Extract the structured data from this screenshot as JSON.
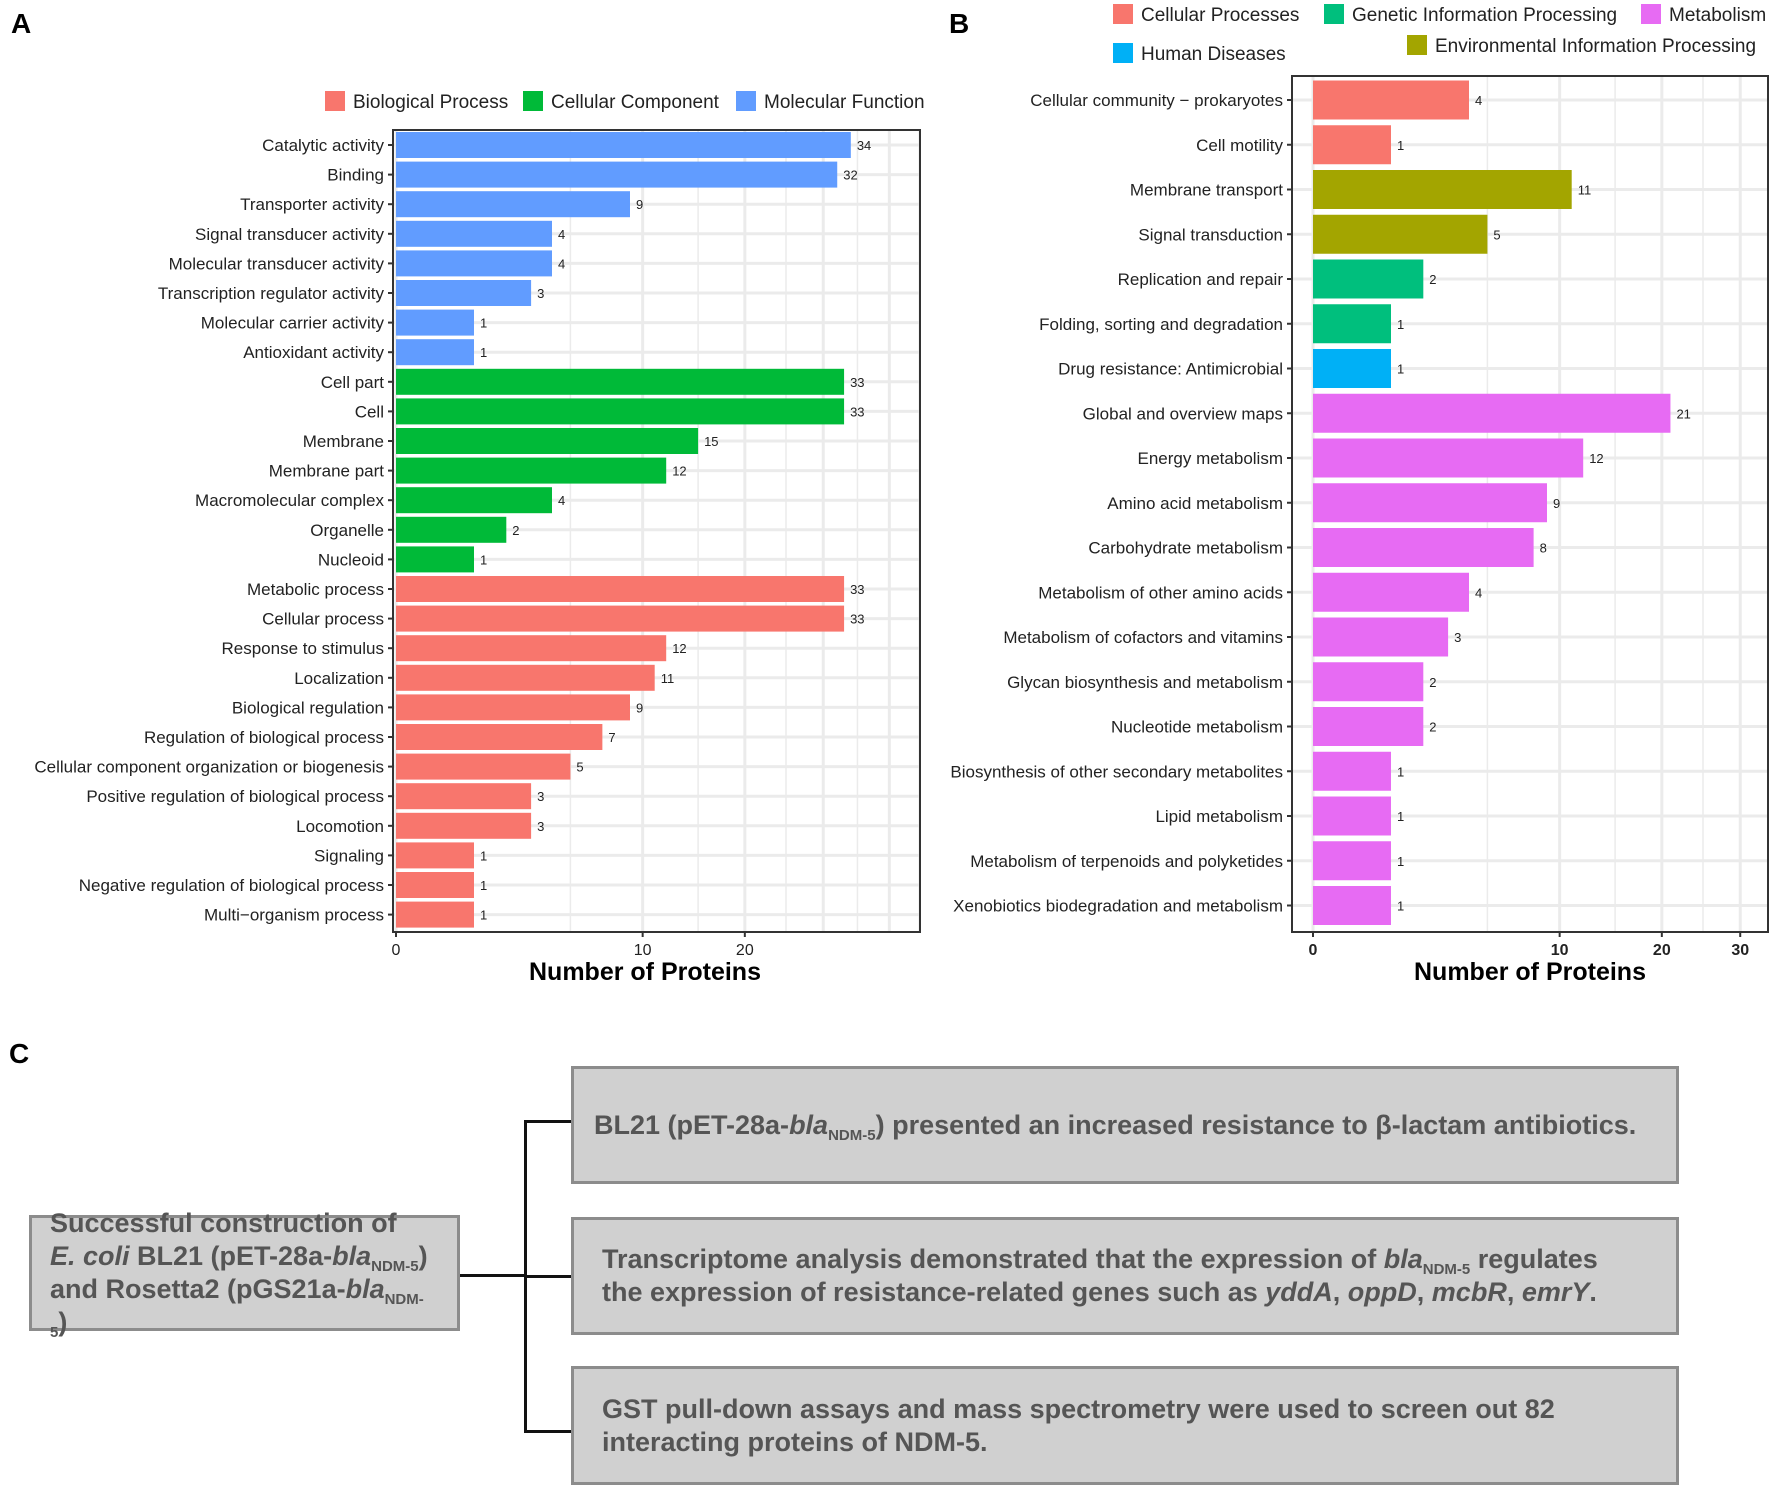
{
  "panel_labels": {
    "a": "A",
    "b": "B",
    "c": "C"
  },
  "chart_data": [
    {
      "type": "bar",
      "orientation": "horizontal",
      "xscale": "sqrt",
      "xlabel": "Number of Proteins",
      "xticks": [
        0,
        10,
        20
      ],
      "xlim": [
        0,
        45
      ],
      "legend": [
        {
          "name": "Biological Process",
          "color": "#F8766D"
        },
        {
          "name": "Cellular Component",
          "color": "#00BA38"
        },
        {
          "name": "Molecular Function",
          "color": "#619CFF"
        }
      ],
      "categories": [
        "Catalytic activity",
        "Binding",
        "Transporter activity",
        "Signal transducer activity",
        "Molecular transducer activity",
        "Transcription regulator activity",
        "Molecular carrier activity",
        "Antioxidant activity",
        "Cell part",
        "Cell",
        "Membrane",
        "Membrane part",
        "Macromolecular complex",
        "Organelle",
        "Nucleoid",
        "Metabolic process",
        "Cellular process",
        "Response to stimulus",
        "Localization",
        "Biological regulation",
        "Regulation of biological process",
        "Cellular component organization or biogenesis",
        "Positive regulation of biological process",
        "Locomotion",
        "Signaling",
        "Negative regulation of biological process",
        "Multi−organism process"
      ],
      "values": [
        34,
        32,
        9,
        4,
        4,
        3,
        1,
        1,
        33,
        33,
        15,
        12,
        4,
        2,
        1,
        33,
        33,
        12,
        11,
        9,
        7,
        5,
        3,
        3,
        1,
        1,
        1
      ],
      "groups": [
        2,
        2,
        2,
        2,
        2,
        2,
        2,
        2,
        1,
        1,
        1,
        1,
        1,
        1,
        1,
        0,
        0,
        0,
        0,
        0,
        0,
        0,
        0,
        0,
        0,
        0,
        0
      ]
    },
    {
      "type": "bar",
      "orientation": "horizontal",
      "xscale": "sqrt",
      "xlabel": "Number of Proteins",
      "xticks": [
        0,
        10,
        20,
        30
      ],
      "xlim": [
        0,
        37
      ],
      "legend": [
        {
          "name": "Cellular Processes",
          "color": "#F8766D"
        },
        {
          "name": "Genetic Information Processing",
          "color": "#00BF7D"
        },
        {
          "name": "Metabolism",
          "color": "#E76BF3"
        },
        {
          "name": "Human Diseases",
          "color": "#00B0F6"
        },
        {
          "name": "Environmental Information Processing",
          "color": "#A3A500"
        }
      ],
      "categories": [
        "Cellular community − prokaryotes",
        "Cell motility",
        "Membrane transport",
        "Signal transduction",
        "Replication and repair",
        "Folding, sorting and degradation",
        "Drug resistance: Antimicrobial",
        "Global and overview maps",
        "Energy metabolism",
        "Amino acid metabolism",
        "Carbohydrate metabolism",
        "Metabolism of other amino acids",
        "Metabolism of cofactors and vitamins",
        "Glycan biosynthesis and metabolism",
        "Nucleotide metabolism",
        "Biosynthesis of other secondary metabolites",
        "Lipid metabolism",
        "Metabolism of terpenoids and polyketides",
        "Xenobiotics biodegradation and metabolism"
      ],
      "values": [
        4,
        1,
        11,
        5,
        2,
        1,
        1,
        21,
        12,
        9,
        8,
        4,
        3,
        2,
        2,
        1,
        1,
        1,
        1
      ],
      "groups": [
        0,
        0,
        4,
        4,
        1,
        1,
        3,
        2,
        2,
        2,
        2,
        2,
        2,
        2,
        2,
        2,
        2,
        2,
        2
      ]
    }
  ],
  "diagram": {
    "source": [
      [
        {
          "t": "Successful construction of"
        }
      ],
      [
        {
          "t": "E. coli",
          "f": "i"
        },
        {
          "t": " BL21 (pET-28a-"
        },
        {
          "t": "bla",
          "f": "i"
        },
        {
          "t": "NDM-5",
          "f": "sub"
        },
        {
          "t": ")"
        }
      ],
      [
        {
          "t": "and Rosetta2 (pGS21a-"
        },
        {
          "t": "bla",
          "f": "i"
        },
        {
          "t": "NDM-5",
          "f": "sub"
        },
        {
          "t": ")"
        }
      ]
    ],
    "results": [
      [
        [
          {
            "t": "BL21 (pET-28a-"
          },
          {
            "t": "bla",
            "f": "i"
          },
          {
            "t": "NDM-5",
            "f": "sub"
          },
          {
            "t": ") presented an increased resistance to β-lactam antibiotics."
          }
        ]
      ],
      [
        [
          {
            "t": "Transcriptome analysis demonstrated that the expression of "
          },
          {
            "t": "bla",
            "f": "i"
          },
          {
            "t": "NDM-5",
            "f": "sub"
          },
          {
            "t": " regulates"
          }
        ],
        [
          {
            "t": "the expression of resistance-related genes such as "
          },
          {
            "t": "yddA",
            "f": "i"
          },
          {
            "t": ", "
          },
          {
            "t": "oppD",
            "f": "i"
          },
          {
            "t": ", "
          },
          {
            "t": "mcbR",
            "f": "i"
          },
          {
            "t": ", "
          },
          {
            "t": "emrY",
            "f": "i"
          },
          {
            "t": "."
          }
        ]
      ],
      [
        [
          {
            "t": "GST pull-down assays and mass spectrometry were used to screen out 82"
          }
        ],
        [
          {
            "t": "interacting proteins of NDM-5."
          }
        ]
      ]
    ]
  }
}
